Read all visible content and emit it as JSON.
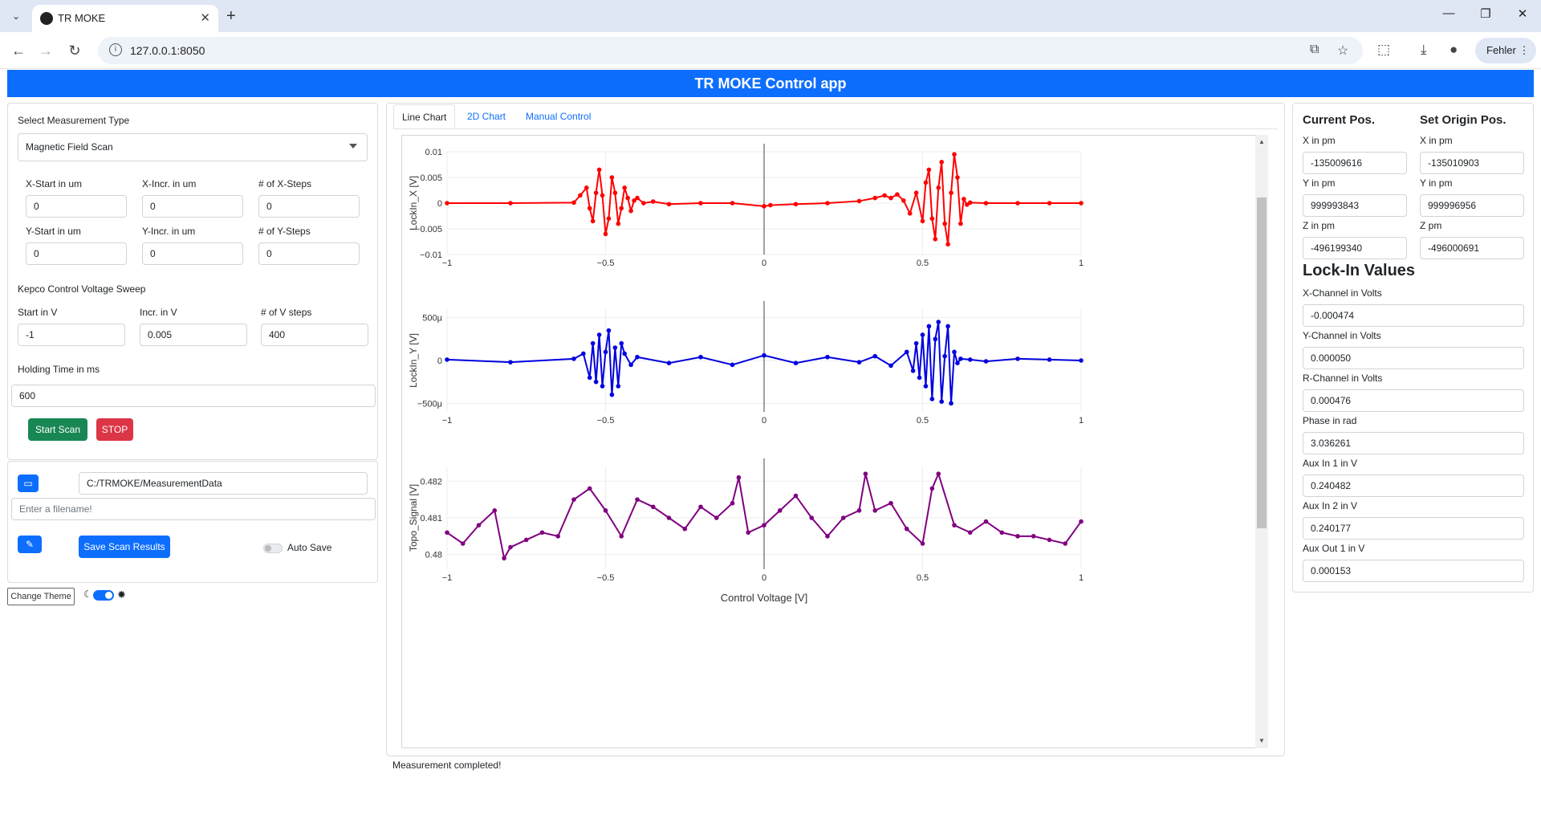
{
  "browser": {
    "tab_title": "TR MOKE",
    "url": "127.0.0.1:8050",
    "profile_label": "Fehler"
  },
  "app": {
    "title": "TR MOKE Control app"
  },
  "measurement": {
    "type_label": "Select Measurement Type",
    "type_value": "Magnetic Field Scan",
    "x_start_label": "X-Start in um",
    "x_start_value": "0",
    "x_incr_label": "X-Incr. in um",
    "x_incr_value": "0",
    "x_steps_label": "# of X-Steps",
    "x_steps_value": "0",
    "y_start_label": "Y-Start in um",
    "y_start_value": "0",
    "y_incr_label": "Y-Incr. in um",
    "y_incr_value": "0",
    "y_steps_label": "# of Y-Steps",
    "y_steps_value": "0",
    "kepco_label": "Kepco Control Voltage Sweep",
    "v_start_label": "Start in V",
    "v_start_value": "-1",
    "v_incr_label": "Incr. in V",
    "v_incr_value": "0.005",
    "v_steps_label": "# of V steps",
    "v_steps_value": "400",
    "holding_label": "Holding Time in ms",
    "holding_value": "600",
    "start_button": "Start Scan",
    "stop_button": "STOP"
  },
  "save": {
    "folder_value": "C:/TRMOKE/MeasurementData",
    "filename_placeholder": "Enter a filename!",
    "save_button": "Save Scan Results",
    "auto_save_label": "Auto Save"
  },
  "theme": {
    "change_button": "Change Theme"
  },
  "tabs": [
    "Line Chart",
    "2D Chart",
    "Manual Control"
  ],
  "status_text": "Measurement completed!",
  "positions": {
    "current_title": "Current Pos.",
    "origin_title": "Set Origin Pos.",
    "current": [
      {
        "label": "X in pm",
        "value": "-135009616"
      },
      {
        "label": "Y in pm",
        "value": "999993843"
      },
      {
        "label": "Z in pm",
        "value": "-496199340"
      }
    ],
    "origin": [
      {
        "label": "X in pm",
        "value": "-135010903"
      },
      {
        "label": "Y in pm",
        "value": "999996956"
      },
      {
        "label": "Z pm",
        "value": "-496000691"
      }
    ]
  },
  "lockin": {
    "title": "Lock-In Values",
    "items": [
      {
        "label": "X-Channel in Volts",
        "value": "-0.000474"
      },
      {
        "label": "Y-Channel in Volts",
        "value": "0.000050"
      },
      {
        "label": "R-Channel in Volts",
        "value": "0.000476"
      },
      {
        "label": "Phase in rad",
        "value": "3.036261"
      },
      {
        "label": "Aux In 1 in V",
        "value": "0.240482"
      },
      {
        "label": "Aux In 2 in V",
        "value": "0.240177"
      },
      {
        "label": "Aux Out 1 in V",
        "value": "0.000153"
      }
    ]
  },
  "colors": {
    "accent": "#0d6efd",
    "start": "#198754",
    "stop": "#dc3545",
    "series_x": "#ff0000",
    "series_y": "#0000e0",
    "series_topo": "#800080"
  },
  "chart_data": [
    {
      "type": "line",
      "ylabel": "LockIn_X [V]",
      "xlabel": "",
      "xlim": [
        -1,
        1
      ],
      "ylim": [
        -0.01,
        0.01
      ],
      "xticks": [
        "−1",
        "−0.5",
        "0",
        "0.5",
        "1"
      ],
      "yticks": [
        "0.01",
        "0.005",
        "0",
        "−0.005",
        "−0.01"
      ],
      "ytick_values": [
        0.01,
        0.005,
        0,
        -0.005,
        -0.01
      ],
      "x": [
        -1,
        -0.8,
        -0.6,
        -0.58,
        -0.56,
        -0.55,
        -0.54,
        -0.53,
        -0.52,
        -0.51,
        -0.5,
        -0.49,
        -0.48,
        -0.47,
        -0.46,
        -0.45,
        -0.44,
        -0.43,
        -0.42,
        -0.41,
        -0.4,
        -0.38,
        -0.35,
        -0.3,
        -0.2,
        -0.1,
        0,
        0.02,
        0.1,
        0.2,
        0.3,
        0.35,
        0.38,
        0.4,
        0.42,
        0.44,
        0.46,
        0.48,
        0.5,
        0.51,
        0.52,
        0.53,
        0.54,
        0.55,
        0.56,
        0.57,
        0.58,
        0.59,
        0.6,
        0.61,
        0.62,
        0.63,
        0.64,
        0.65,
        0.7,
        0.8,
        0.9,
        1
      ],
      "y": [
        0,
        0,
        0.0001,
        0.0015,
        0.003,
        -0.001,
        -0.0035,
        0.002,
        0.0065,
        0.0015,
        -0.006,
        -0.003,
        0.005,
        0.002,
        -0.004,
        -0.001,
        0.003,
        0.001,
        -0.0015,
        0.0005,
        0.001,
        0,
        0.0003,
        -0.0002,
        0,
        0,
        -0.0006,
        -0.0004,
        -0.0002,
        0,
        0.0004,
        0.001,
        0.0015,
        0.001,
        0.0017,
        0.0005,
        -0.002,
        0.002,
        -0.0035,
        0.004,
        0.0065,
        -0.003,
        -0.007,
        0.003,
        0.008,
        -0.004,
        -0.008,
        0.002,
        0.0095,
        0.005,
        -0.004,
        0.0008,
        -0.0003,
        0.0001,
        0,
        0,
        0,
        0
      ]
    },
    {
      "type": "line",
      "ylabel": "LockIn_Y [V]",
      "xlabel": "",
      "xlim": [
        -1,
        1
      ],
      "ylim": [
        -0.0006,
        0.0006
      ],
      "xticks": [
        "−1",
        "−0.5",
        "0",
        "0.5",
        "1"
      ],
      "yticks": [
        "500μ",
        "0",
        "−500μ"
      ],
      "ytick_values": [
        0.0005,
        0,
        -0.0005
      ],
      "x": [
        -1,
        -0.8,
        -0.6,
        -0.57,
        -0.55,
        -0.54,
        -0.53,
        -0.52,
        -0.51,
        -0.5,
        -0.49,
        -0.48,
        -0.47,
        -0.46,
        -0.45,
        -0.44,
        -0.42,
        -0.4,
        -0.3,
        -0.2,
        -0.1,
        0,
        0.1,
        0.2,
        0.3,
        0.35,
        0.4,
        0.45,
        0.47,
        0.48,
        0.49,
        0.5,
        0.51,
        0.52,
        0.53,
        0.54,
        0.55,
        0.56,
        0.57,
        0.58,
        0.59,
        0.6,
        0.61,
        0.62,
        0.65,
        0.7,
        0.8,
        0.9,
        1
      ],
      "y": [
        1e-05,
        -2e-05,
        2e-05,
        8e-05,
        -0.0002,
        0.0002,
        -0.00025,
        0.0003,
        -0.0003,
        0.0001,
        0.00035,
        -0.0004,
        0.00015,
        -0.0003,
        0.0002,
        8e-05,
        -5e-05,
        4e-05,
        -3e-05,
        4e-05,
        -5e-05,
        6e-05,
        -3e-05,
        4e-05,
        -2e-05,
        5e-05,
        -6e-05,
        0.0001,
        -0.00012,
        0.0002,
        -0.0002,
        0.0003,
        -0.0003,
        0.0004,
        -0.00045,
        0.00025,
        0.00045,
        -0.00048,
        5e-05,
        0.0004,
        -0.0005,
        0.0001,
        -3e-05,
        2e-05,
        1e-05,
        -1e-05,
        2e-05,
        1e-05,
        0
      ]
    },
    {
      "type": "line",
      "ylabel": "Topo_Signal [V]",
      "xlabel": "Control Voltage [V]",
      "xlim": [
        -1,
        1
      ],
      "ylim": [
        0.4796,
        0.4824
      ],
      "xticks": [
        "−1",
        "−0.5",
        "0",
        "0.5",
        "1"
      ],
      "yticks": [
        "0.482",
        "0.481",
        "0.48"
      ],
      "ytick_values": [
        0.482,
        0.481,
        0.48
      ],
      "x": [
        -1,
        -0.95,
        -0.9,
        -0.85,
        -0.82,
        -0.8,
        -0.75,
        -0.7,
        -0.65,
        -0.6,
        -0.55,
        -0.5,
        -0.45,
        -0.4,
        -0.35,
        -0.3,
        -0.25,
        -0.2,
        -0.15,
        -0.1,
        -0.08,
        -0.05,
        0,
        0.05,
        0.1,
        0.15,
        0.2,
        0.25,
        0.3,
        0.32,
        0.35,
        0.4,
        0.45,
        0.5,
        0.53,
        0.55,
        0.6,
        0.65,
        0.7,
        0.75,
        0.8,
        0.85,
        0.9,
        0.95,
        1
      ],
      "y": [
        0.4806,
        0.4803,
        0.4808,
        0.4812,
        0.4799,
        0.4802,
        0.4804,
        0.4806,
        0.4805,
        0.4815,
        0.4818,
        0.4812,
        0.4805,
        0.4815,
        0.4813,
        0.481,
        0.4807,
        0.4813,
        0.481,
        0.4814,
        0.4821,
        0.4806,
        0.4808,
        0.4812,
        0.4816,
        0.481,
        0.4805,
        0.481,
        0.4812,
        0.4822,
        0.4812,
        0.4814,
        0.4807,
        0.4803,
        0.4818,
        0.4822,
        0.4808,
        0.4806,
        0.4809,
        0.4806,
        0.4805,
        0.4805,
        0.4804,
        0.4803,
        0.4809
      ]
    }
  ]
}
